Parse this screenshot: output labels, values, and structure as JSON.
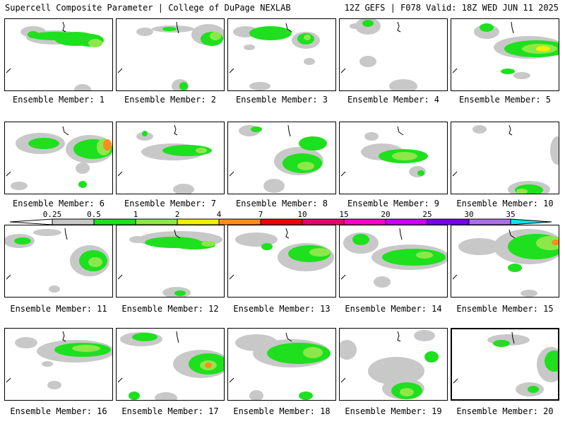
{
  "header": {
    "title": "Supercell Composite Parameter | College of DuPage NEXLAB",
    "valid": "12Z GEFS | F078 Valid: 18Z WED JUN 11 2025"
  },
  "colorbar": {
    "levels": [
      "0.25",
      "0.5",
      "1",
      "2",
      "4",
      "7",
      "10",
      "15",
      "20",
      "25",
      "30",
      "35"
    ],
    "colors": [
      "#c8c8c8",
      "#1ee01e",
      "#8ce84a",
      "#f0f000",
      "#ff8c1e",
      "#f00000",
      "#e6006e",
      "#ff00c8",
      "#c800ff",
      "#7a00e6",
      "#aa6ee6",
      "#00e6f0"
    ]
  },
  "members": [
    {
      "label": "Ensemble Member: 1"
    },
    {
      "label": "Ensemble Member: 2"
    },
    {
      "label": "Ensemble Member: 3"
    },
    {
      "label": "Ensemble Member: 4"
    },
    {
      "label": "Ensemble Member: 5"
    },
    {
      "label": "Ensemble Member: 6"
    },
    {
      "label": "Ensemble Member: 7"
    },
    {
      "label": "Ensemble Member: 8"
    },
    {
      "label": "Ensemble Member: 9"
    },
    {
      "label": "Ensemble Member: 10"
    },
    {
      "label": "Ensemble Member: 11"
    },
    {
      "label": "Ensemble Member: 12"
    },
    {
      "label": "Ensemble Member: 13"
    },
    {
      "label": "Ensemble Member: 14"
    },
    {
      "label": "Ensemble Member: 15"
    },
    {
      "label": "Ensemble Member: 16"
    },
    {
      "label": "Ensemble Member: 17"
    },
    {
      "label": "Ensemble Member: 18"
    },
    {
      "label": "Ensemble Member: 19"
    },
    {
      "label": "Ensemble Member: 20"
    }
  ]
}
